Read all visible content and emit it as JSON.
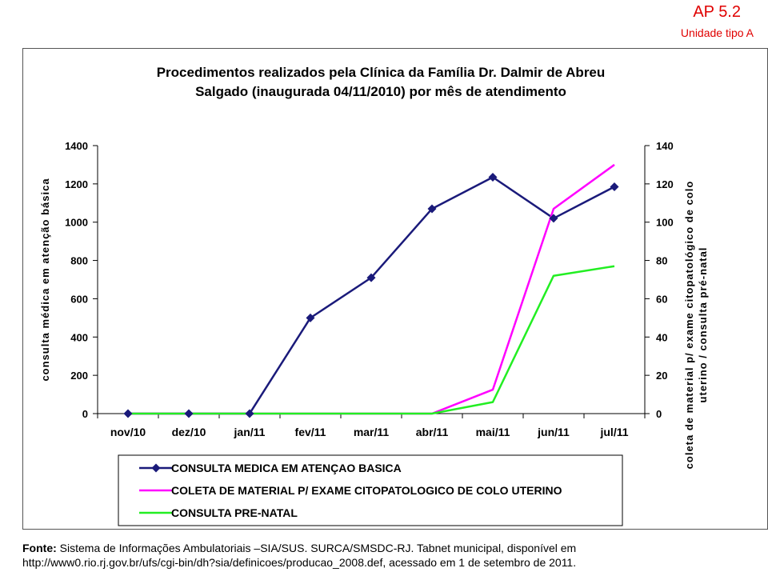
{
  "header": {
    "code": "AP 5.2",
    "subtitle": "Unidade tipo A"
  },
  "chart_data": {
    "type": "line",
    "title_lines": [
      "Procedimentos realizados pela Clínica da Família Dr. Dalmir de Abreu",
      "Salgado (inaugurada 04/11/2010) por mês de atendimento"
    ],
    "categories": [
      "nov/10",
      "dez/10",
      "jan/11",
      "fev/11",
      "mar/11",
      "abr/11",
      "mai/11",
      "jun/11",
      "jul/11"
    ],
    "y_left": {
      "label": "consulta  médica em atenção básica",
      "range": [
        0,
        1400
      ],
      "ticks": [
        "0",
        "200",
        "400",
        "600",
        "800",
        "1000",
        "1200",
        "1400"
      ]
    },
    "y_right": {
      "label_lines": [
        "coleta de material p/ exame citopatológico de colo",
        "uterino / consulta  pré-natal"
      ],
      "range": [
        0,
        140
      ],
      "ticks": [
        "0",
        "20",
        "40",
        "60",
        "80",
        "100",
        "120",
        "140"
      ]
    },
    "series": [
      {
        "name": "CONSULTA MEDICA EM ATENÇAO BASICA",
        "axis": "left",
        "color": "#1a1a7a",
        "marker": "diamond",
        "values": [
          0,
          0,
          0,
          500,
          710,
          1070,
          1235,
          1020,
          1185
        ]
      },
      {
        "name": "COLETA DE MATERIAL P/ EXAME CITOPATOLOGICO DE COLO UTERINO",
        "axis": "right",
        "color": "#ff00ff",
        "marker": "none",
        "values": [
          0,
          0,
          0,
          0,
          0,
          0,
          12.5,
          107,
          130
        ]
      },
      {
        "name": "CONSULTA PRE-NATAL",
        "axis": "right",
        "color": "#22ee22",
        "marker": "none",
        "values": [
          0,
          0,
          0,
          0,
          0,
          0,
          6,
          72,
          77
        ]
      }
    ],
    "grid": false,
    "legend": "bottom"
  },
  "footer": {
    "source_label": "Fonte:",
    "source_text": " Sistema de Informações Ambulatoriais –SIA/SUS. SURCA/SMSDC-RJ. Tabnet municipal, disponível  em",
    "source_line2": "http://www0.rio.rj.gov.br/ufs/cgi-bin/dh?sia/definicoes/producao_2008.def,  acessado em 1 de setembro de 2011."
  }
}
